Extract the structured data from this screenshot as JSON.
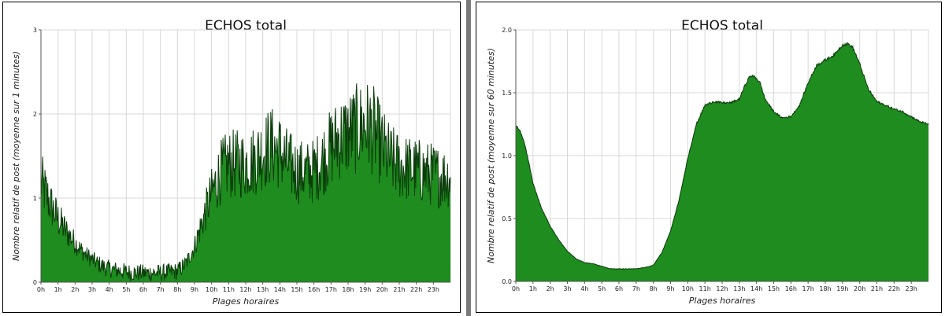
{
  "chart_data": [
    {
      "type": "area",
      "title": "ECHOS total",
      "xlabel": "Plages horaires",
      "ylabel": "Nombre relatif de post (moyenne sur 1 minutes)",
      "x_tick_labels": [
        "0h",
        "1h",
        "2h",
        "3h",
        "4h",
        "5h",
        "6h",
        "7h",
        "8h",
        "9h",
        "10h",
        "11h",
        "12h",
        "13h",
        "14h",
        "15h",
        "16h",
        "17h",
        "18h",
        "19h",
        "20h",
        "21h",
        "22h",
        "23h"
      ],
      "y_ticks": [
        0,
        1,
        2,
        3
      ],
      "y_tick_labels": [
        "0",
        "1",
        "2",
        "3"
      ],
      "xlim": [
        0,
        24
      ],
      "ylim": [
        0,
        3
      ],
      "grid": true,
      "fill_color": "#1e8c1e",
      "line_color": "#0b3d0b",
      "noise": 0.3,
      "series": [
        {
          "x": [
            0,
            0.5,
            1,
            1.5,
            2,
            2.5,
            3,
            3.5,
            4,
            4.5,
            5,
            5.5,
            6,
            6.5,
            7,
            7.5,
            8,
            8.5,
            9,
            9.5,
            10,
            10.5,
            11,
            11.5,
            12,
            12.5,
            13,
            13.5,
            14,
            14.5,
            15,
            15.5,
            16,
            16.5,
            17,
            17.5,
            18,
            18.5,
            19,
            19.5,
            20,
            20.5,
            21,
            21.5,
            22,
            22.5,
            23,
            23.5,
            24
          ],
          "y": [
            1.2,
            0.95,
            0.75,
            0.6,
            0.47,
            0.35,
            0.27,
            0.2,
            0.16,
            0.14,
            0.12,
            0.11,
            0.11,
            0.11,
            0.11,
            0.12,
            0.13,
            0.22,
            0.42,
            0.75,
            1.05,
            1.3,
            1.4,
            1.4,
            1.4,
            1.45,
            1.55,
            1.62,
            1.55,
            1.4,
            1.32,
            1.3,
            1.32,
            1.45,
            1.6,
            1.72,
            1.76,
            1.82,
            1.88,
            1.8,
            1.6,
            1.45,
            1.38,
            1.35,
            1.33,
            1.3,
            1.28,
            1.25,
            1.25
          ]
        }
      ]
    },
    {
      "type": "area",
      "title": "ECHOS total",
      "xlabel": "Plages horaires",
      "ylabel": "Nombre relatif de post (moyenne sur 60 minutes)",
      "x_tick_labels": [
        "0h",
        "1h",
        "2h",
        "3h",
        "4h",
        "5h",
        "6h",
        "7h",
        "8h",
        "9h",
        "10h",
        "11h",
        "12h",
        "13h",
        "14h",
        "15h",
        "16h",
        "17h",
        "18h",
        "19h",
        "20h",
        "21h",
        "22h",
        "23h"
      ],
      "y_ticks": [
        0,
        0.5,
        1,
        1.5,
        2
      ],
      "y_tick_labels": [
        "0.0",
        "0.5",
        "1.0",
        "1.5",
        "2.0"
      ],
      "xlim": [
        0,
        24
      ],
      "ylim": [
        0,
        2
      ],
      "grid": true,
      "fill_color": "#1e8c1e",
      "line_color": "#0b3d0b",
      "noise": 0.006,
      "series": [
        {
          "x": [
            0,
            0.25,
            0.5,
            0.75,
            1,
            1.5,
            2,
            2.5,
            3,
            3.5,
            4,
            4.5,
            5,
            5.5,
            6,
            6.5,
            7,
            7.5,
            8,
            8.5,
            9,
            9.5,
            10,
            10.5,
            11,
            11.5,
            12,
            12.5,
            13,
            13.3,
            13.6,
            13.9,
            14.2,
            14.5,
            15,
            15.5,
            16,
            16.5,
            17,
            17.5,
            18,
            18.5,
            19,
            19.3,
            19.6,
            20,
            20.5,
            21,
            21.5,
            22,
            22.5,
            23,
            23.5,
            24
          ],
          "y": [
            1.24,
            1.2,
            1.1,
            0.95,
            0.78,
            0.58,
            0.44,
            0.33,
            0.24,
            0.18,
            0.15,
            0.14,
            0.12,
            0.1,
            0.1,
            0.1,
            0.1,
            0.11,
            0.13,
            0.23,
            0.4,
            0.65,
            0.98,
            1.25,
            1.4,
            1.43,
            1.42,
            1.42,
            1.45,
            1.55,
            1.63,
            1.63,
            1.58,
            1.45,
            1.35,
            1.3,
            1.31,
            1.4,
            1.58,
            1.72,
            1.76,
            1.8,
            1.88,
            1.89,
            1.86,
            1.73,
            1.53,
            1.43,
            1.4,
            1.37,
            1.35,
            1.31,
            1.27,
            1.25
          ]
        }
      ]
    }
  ]
}
